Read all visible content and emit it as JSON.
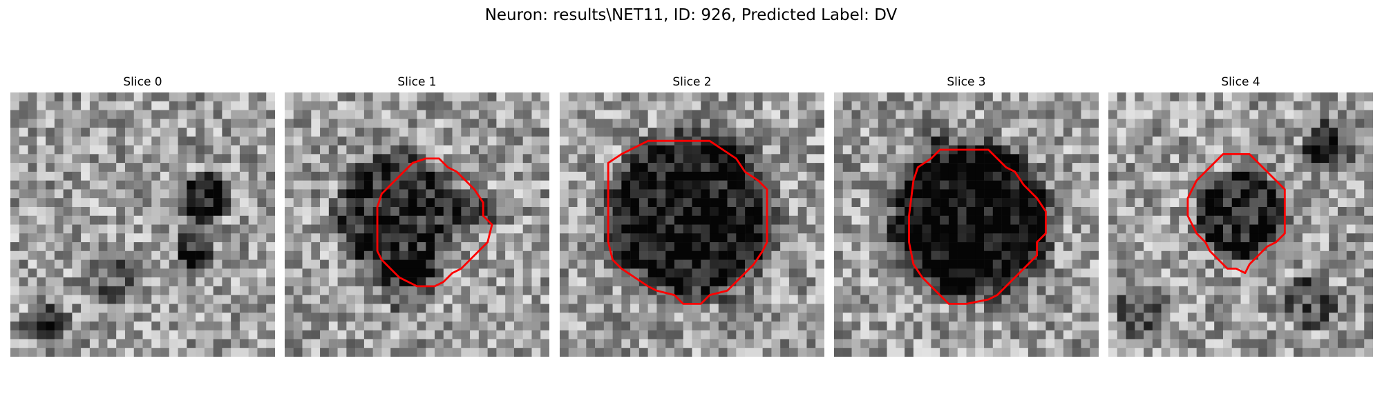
{
  "figure": {
    "title": "Neuron: results\\NET11, ID: 926, Predicted Label: DV"
  },
  "colors": {
    "contour": "#ff0000",
    "background": "#ffffff",
    "colormap": "gray"
  },
  "panels": [
    {
      "title": "Slice 0",
      "has_contour": false
    },
    {
      "title": "Slice 1",
      "has_contour": true
    },
    {
      "title": "Slice 2",
      "has_contour": true
    },
    {
      "title": "Slice 3",
      "has_contour": true
    },
    {
      "title": "Slice 4",
      "has_contour": true
    }
  ]
}
